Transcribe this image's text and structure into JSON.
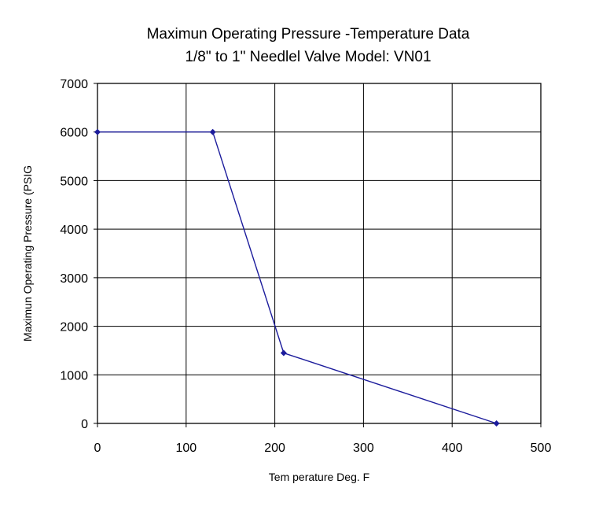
{
  "chart_data": {
    "type": "line",
    "title": "Maximun Operating Pressure -Temperature Data",
    "subtitle": "1/8\" to 1\" Needlel Valve Model: VN01",
    "xlabel": "Tem perature Deg. F",
    "ylabel": "Maximun Operating Pressure (PSIG",
    "xlim": [
      0,
      500
    ],
    "ylim": [
      0,
      7000
    ],
    "xticks": [
      0,
      100,
      200,
      300,
      400,
      500
    ],
    "yticks": [
      0,
      1000,
      2000,
      3000,
      4000,
      5000,
      6000,
      7000
    ],
    "grid": true,
    "legend": "none",
    "series": [
      {
        "x": [
          0,
          130,
          210,
          450
        ],
        "y": [
          6000,
          6000,
          1450,
          0
        ],
        "color": "#1c1c9c",
        "marker": "diamond"
      }
    ]
  }
}
